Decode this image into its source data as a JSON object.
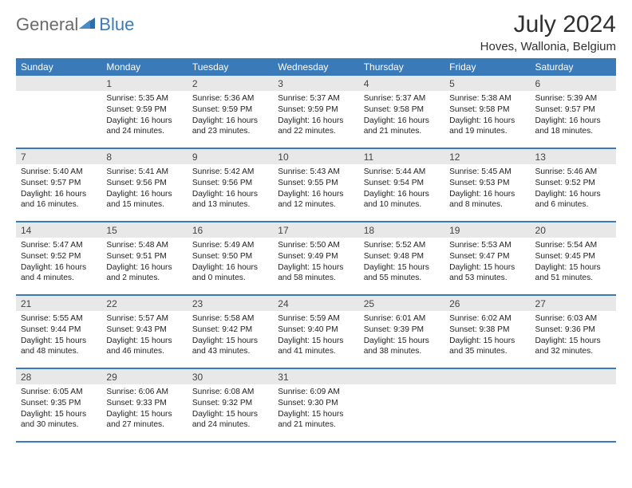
{
  "brand": {
    "part1": "General",
    "part2": "Blue"
  },
  "title": "July 2024",
  "location": "Hoves, Wallonia, Belgium",
  "colors": {
    "accent": "#3a7ab8",
    "header_bg": "#3a7ab8",
    "header_fg": "#ffffff",
    "daynum_bg": "#e8e8e8",
    "text": "#222222",
    "logo_gray": "#6a6a6a"
  },
  "dow": [
    "Sunday",
    "Monday",
    "Tuesday",
    "Wednesday",
    "Thursday",
    "Friday",
    "Saturday"
  ],
  "weeks": [
    {
      "nums": [
        "",
        "1",
        "2",
        "3",
        "4",
        "5",
        "6"
      ],
      "cells": [
        null,
        {
          "sunrise": "5:35 AM",
          "sunset": "9:59 PM",
          "daylight": "16 hours and 24 minutes."
        },
        {
          "sunrise": "5:36 AM",
          "sunset": "9:59 PM",
          "daylight": "16 hours and 23 minutes."
        },
        {
          "sunrise": "5:37 AM",
          "sunset": "9:59 PM",
          "daylight": "16 hours and 22 minutes."
        },
        {
          "sunrise": "5:37 AM",
          "sunset": "9:58 PM",
          "daylight": "16 hours and 21 minutes."
        },
        {
          "sunrise": "5:38 AM",
          "sunset": "9:58 PM",
          "daylight": "16 hours and 19 minutes."
        },
        {
          "sunrise": "5:39 AM",
          "sunset": "9:57 PM",
          "daylight": "16 hours and 18 minutes."
        }
      ]
    },
    {
      "nums": [
        "7",
        "8",
        "9",
        "10",
        "11",
        "12",
        "13"
      ],
      "cells": [
        {
          "sunrise": "5:40 AM",
          "sunset": "9:57 PM",
          "daylight": "16 hours and 16 minutes."
        },
        {
          "sunrise": "5:41 AM",
          "sunset": "9:56 PM",
          "daylight": "16 hours and 15 minutes."
        },
        {
          "sunrise": "5:42 AM",
          "sunset": "9:56 PM",
          "daylight": "16 hours and 13 minutes."
        },
        {
          "sunrise": "5:43 AM",
          "sunset": "9:55 PM",
          "daylight": "16 hours and 12 minutes."
        },
        {
          "sunrise": "5:44 AM",
          "sunset": "9:54 PM",
          "daylight": "16 hours and 10 minutes."
        },
        {
          "sunrise": "5:45 AM",
          "sunset": "9:53 PM",
          "daylight": "16 hours and 8 minutes."
        },
        {
          "sunrise": "5:46 AM",
          "sunset": "9:52 PM",
          "daylight": "16 hours and 6 minutes."
        }
      ]
    },
    {
      "nums": [
        "14",
        "15",
        "16",
        "17",
        "18",
        "19",
        "20"
      ],
      "cells": [
        {
          "sunrise": "5:47 AM",
          "sunset": "9:52 PM",
          "daylight": "16 hours and 4 minutes."
        },
        {
          "sunrise": "5:48 AM",
          "sunset": "9:51 PM",
          "daylight": "16 hours and 2 minutes."
        },
        {
          "sunrise": "5:49 AM",
          "sunset": "9:50 PM",
          "daylight": "16 hours and 0 minutes."
        },
        {
          "sunrise": "5:50 AM",
          "sunset": "9:49 PM",
          "daylight": "15 hours and 58 minutes."
        },
        {
          "sunrise": "5:52 AM",
          "sunset": "9:48 PM",
          "daylight": "15 hours and 55 minutes."
        },
        {
          "sunrise": "5:53 AM",
          "sunset": "9:47 PM",
          "daylight": "15 hours and 53 minutes."
        },
        {
          "sunrise": "5:54 AM",
          "sunset": "9:45 PM",
          "daylight": "15 hours and 51 minutes."
        }
      ]
    },
    {
      "nums": [
        "21",
        "22",
        "23",
        "24",
        "25",
        "26",
        "27"
      ],
      "cells": [
        {
          "sunrise": "5:55 AM",
          "sunset": "9:44 PM",
          "daylight": "15 hours and 48 minutes."
        },
        {
          "sunrise": "5:57 AM",
          "sunset": "9:43 PM",
          "daylight": "15 hours and 46 minutes."
        },
        {
          "sunrise": "5:58 AM",
          "sunset": "9:42 PM",
          "daylight": "15 hours and 43 minutes."
        },
        {
          "sunrise": "5:59 AM",
          "sunset": "9:40 PM",
          "daylight": "15 hours and 41 minutes."
        },
        {
          "sunrise": "6:01 AM",
          "sunset": "9:39 PM",
          "daylight": "15 hours and 38 minutes."
        },
        {
          "sunrise": "6:02 AM",
          "sunset": "9:38 PM",
          "daylight": "15 hours and 35 minutes."
        },
        {
          "sunrise": "6:03 AM",
          "sunset": "9:36 PM",
          "daylight": "15 hours and 32 minutes."
        }
      ]
    },
    {
      "nums": [
        "28",
        "29",
        "30",
        "31",
        "",
        "",
        ""
      ],
      "cells": [
        {
          "sunrise": "6:05 AM",
          "sunset": "9:35 PM",
          "daylight": "15 hours and 30 minutes."
        },
        {
          "sunrise": "6:06 AM",
          "sunset": "9:33 PM",
          "daylight": "15 hours and 27 minutes."
        },
        {
          "sunrise": "6:08 AM",
          "sunset": "9:32 PM",
          "daylight": "15 hours and 24 minutes."
        },
        {
          "sunrise": "6:09 AM",
          "sunset": "9:30 PM",
          "daylight": "15 hours and 21 minutes."
        },
        null,
        null,
        null
      ]
    }
  ],
  "labels": {
    "sunrise": "Sunrise: ",
    "sunset": "Sunset: ",
    "daylight": "Daylight: "
  }
}
